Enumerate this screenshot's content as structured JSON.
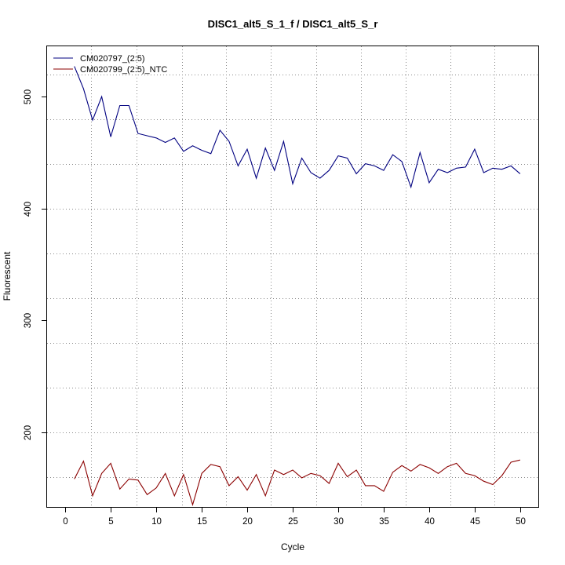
{
  "chart_data": {
    "type": "line",
    "title": "DISC1_alt5_S_1_f / DISC1_alt5_S_r",
    "xlabel": "Cycle",
    "ylabel": "Fluorescent",
    "xlim": [
      -2,
      52
    ],
    "ylim": [
      133,
      545
    ],
    "x_ticks": [
      0,
      5,
      10,
      15,
      20,
      25,
      30,
      35,
      40,
      45,
      50
    ],
    "y_ticks": [
      200,
      300,
      400,
      500
    ],
    "x_grid": [
      2.8,
      7.8,
      12.8,
      17.7,
      22.6,
      27.6,
      32.5,
      37.4,
      42.3,
      47.2
    ],
    "y_grid": [
      160,
      200,
      240,
      280,
      320,
      360,
      400,
      440,
      480,
      520
    ],
    "grid": true,
    "legend_position": "top-left",
    "x": [
      1,
      2,
      3,
      4,
      5,
      6,
      7,
      8,
      9,
      10,
      11,
      12,
      13,
      14,
      15,
      16,
      17,
      18,
      19,
      20,
      21,
      22,
      23,
      24,
      25,
      26,
      27,
      28,
      29,
      30,
      31,
      32,
      33,
      34,
      35,
      36,
      37,
      38,
      39,
      40,
      41,
      42,
      43,
      44,
      45,
      46,
      47,
      48,
      49,
      50
    ],
    "series": [
      {
        "name": "CM020797_(2:5)",
        "color": "#000080",
        "values": [
          527,
          507,
          479,
          500,
          464,
          492,
          492,
          467,
          465,
          463,
          459,
          463,
          451,
          456,
          452,
          449,
          470,
          460,
          438,
          453,
          427,
          454,
          434,
          460,
          422,
          445,
          432,
          427,
          434,
          447,
          445,
          431,
          440,
          438,
          434,
          448,
          442,
          419,
          450,
          423,
          435,
          432,
          436,
          437,
          453,
          432,
          436,
          435,
          438,
          431
        ]
      },
      {
        "name": "CM020799_(2:5)_NTC",
        "color": "#8b0000",
        "values": [
          158,
          174,
          143,
          163,
          172,
          149,
          158,
          157,
          144,
          150,
          163,
          143,
          162,
          135,
          163,
          171,
          169,
          152,
          160,
          148,
          162,
          143,
          166,
          162,
          166,
          159,
          163,
          161,
          154,
          172,
          160,
          166,
          152,
          152,
          147,
          164,
          170,
          165,
          171,
          168,
          163,
          169,
          172,
          163,
          161,
          156,
          153,
          161,
          173,
          175
        ]
      }
    ]
  }
}
